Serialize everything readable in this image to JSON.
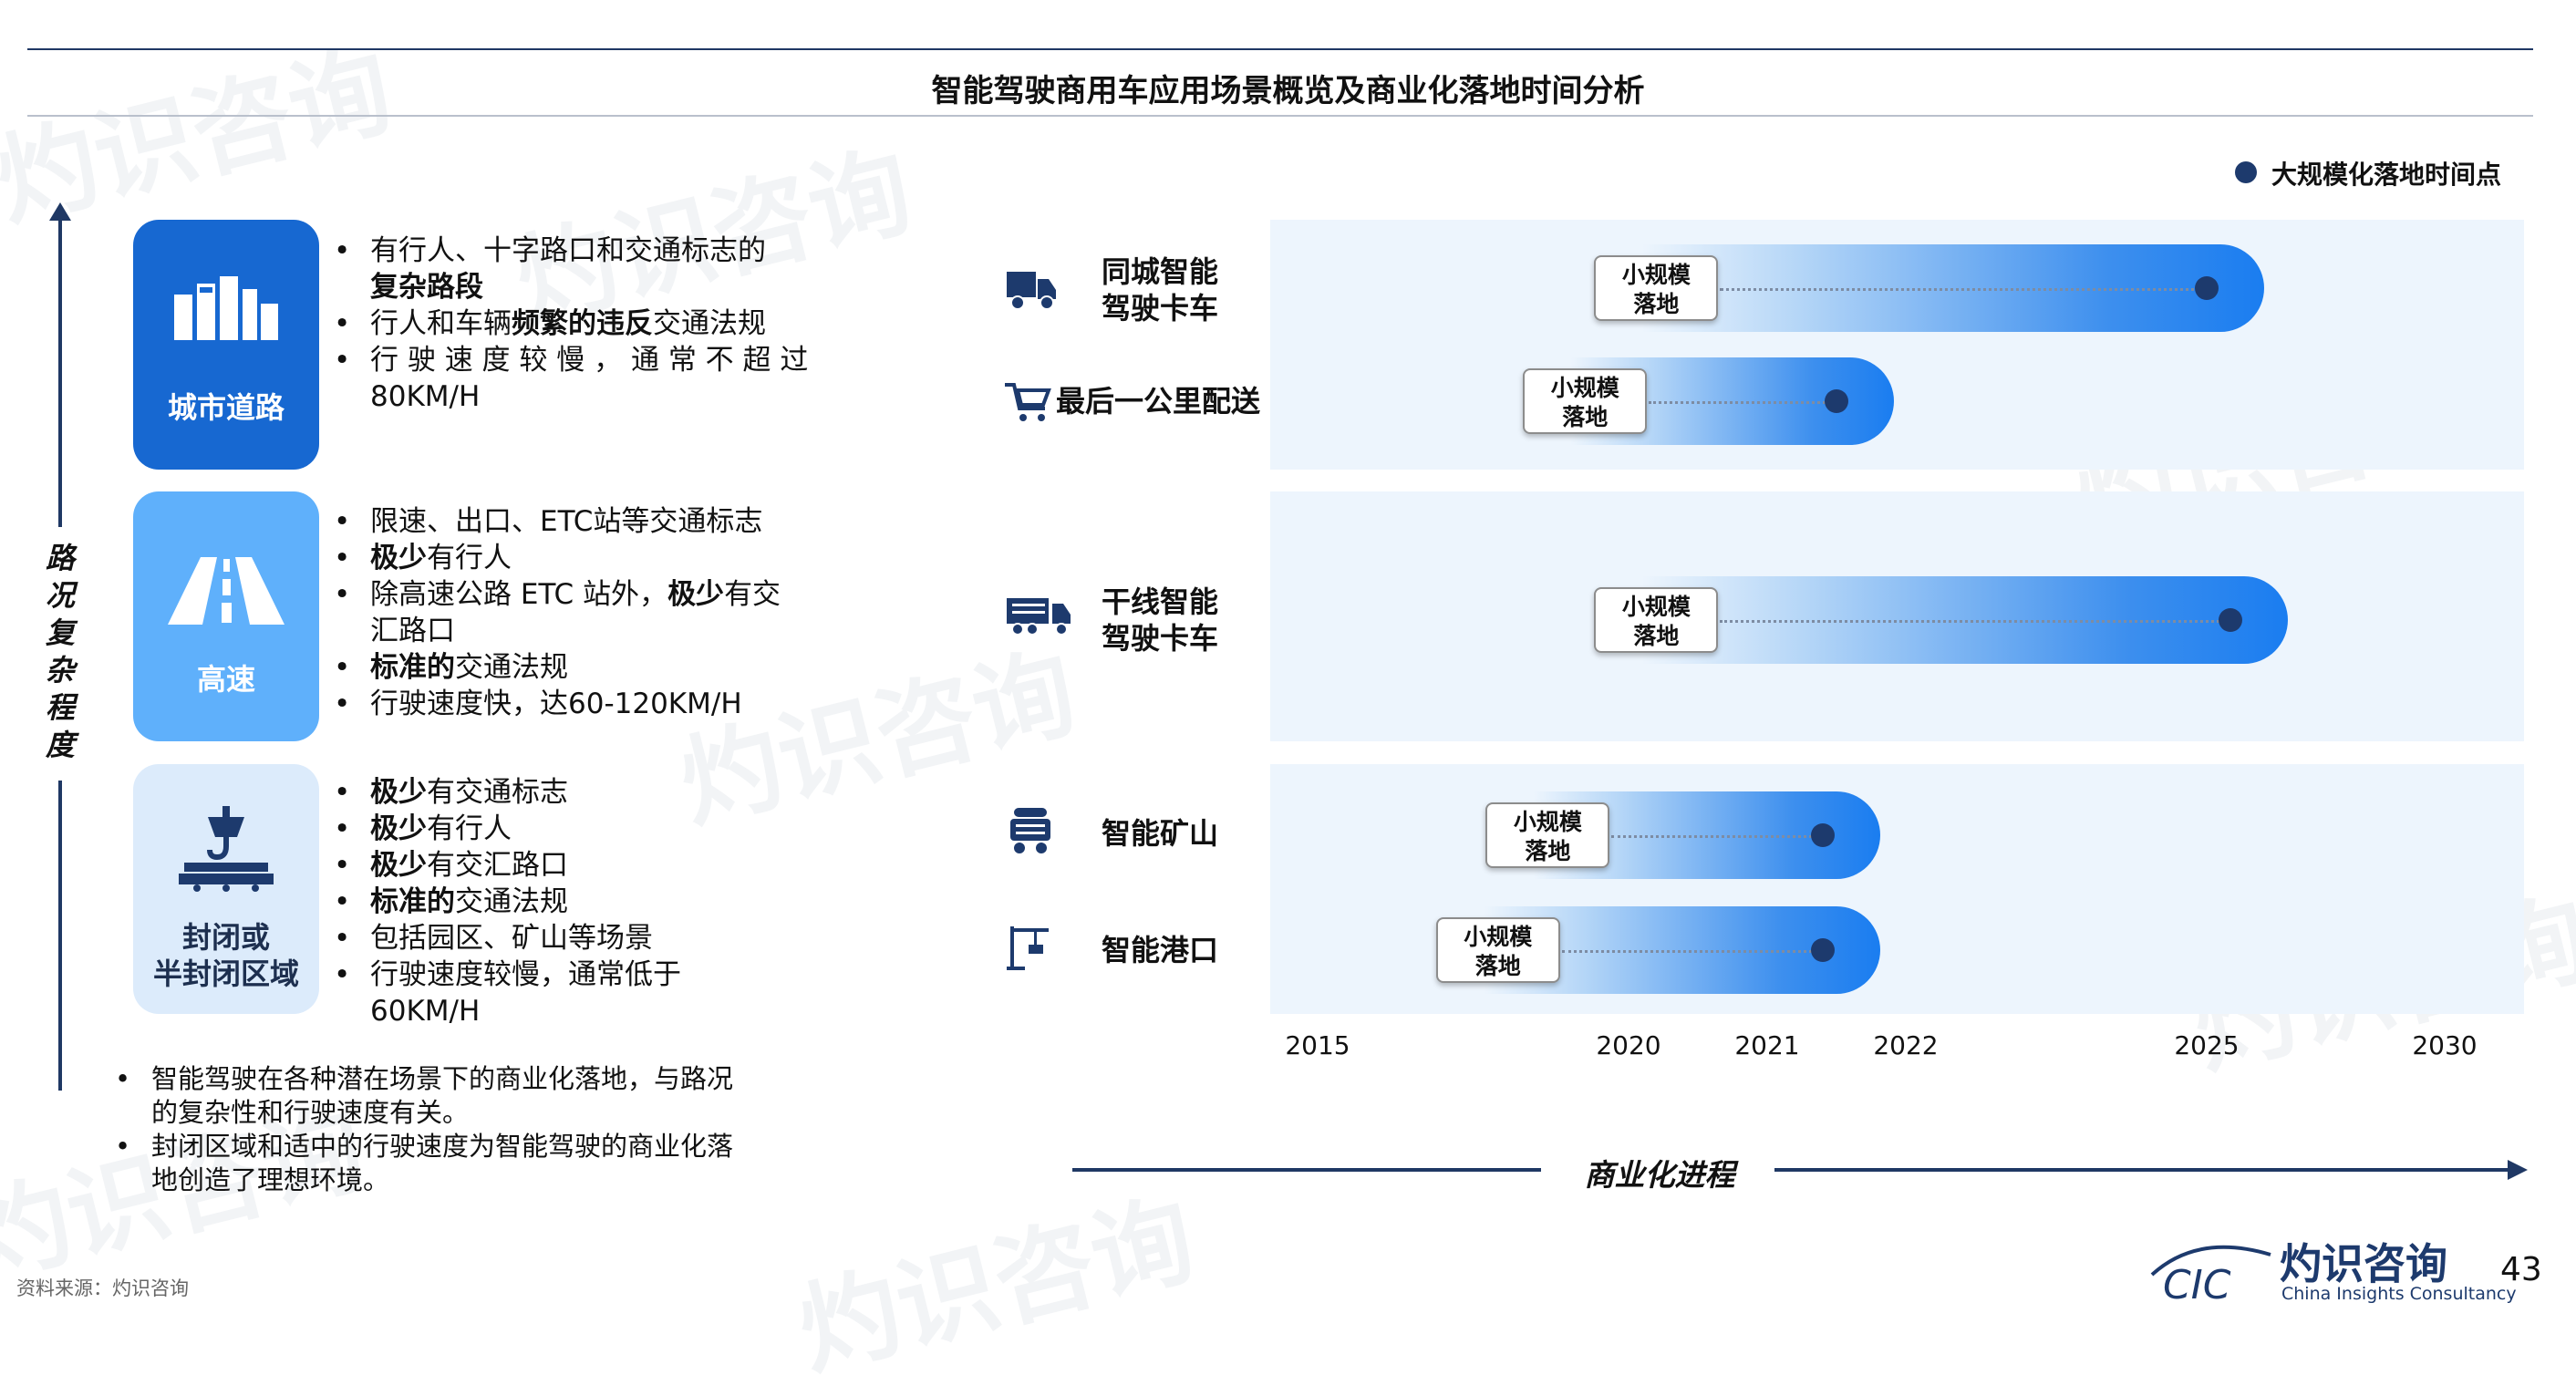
{
  "title": "智能驾驶商用车应用场景概览及商业化落地时间分析",
  "left_axis_label": [
    "路",
    "况",
    "复",
    "杂",
    "程",
    "度"
  ],
  "scenarios": [
    {
      "label_lines": [
        "城市道路"
      ],
      "bullets": [
        {
          "lines": [
            [
              {
                "t": "有行人、十字路口和交通标志的",
                "b": false
              }
            ],
            [
              {
                "t": "复杂路段",
                "b": true
              }
            ]
          ]
        },
        {
          "lines": [
            [
              {
                "t": "行人和车辆",
                "b": false
              },
              {
                "t": "频繁的违反",
                "b": true
              },
              {
                "t": "交通法规",
                "b": false
              }
            ]
          ]
        },
        {
          "lines": [
            [
              {
                "t": "行 驶 速 度 较 慢 ， 通 常 不 超 过",
                "b": false
              }
            ],
            [
              {
                "t": "80KM/H",
                "b": false
              }
            ]
          ]
        }
      ]
    },
    {
      "label_lines": [
        "高速"
      ],
      "bullets": [
        {
          "lines": [
            [
              {
                "t": "限速、出口、ETC站等交通标志",
                "b": false
              }
            ]
          ]
        },
        {
          "lines": [
            [
              {
                "t": "极少",
                "b": true
              },
              {
                "t": "有行人",
                "b": false
              }
            ]
          ]
        },
        {
          "lines": [
            [
              {
                "t": "除高速公路 ETC 站外，",
                "b": false
              },
              {
                "t": "极少",
                "b": true
              },
              {
                "t": "有交",
                "b": false
              }
            ],
            [
              {
                "t": "汇路口",
                "b": false
              }
            ]
          ]
        },
        {
          "lines": [
            [
              {
                "t": "标准的",
                "b": true
              },
              {
                "t": "交通法规",
                "b": false
              }
            ]
          ]
        },
        {
          "lines": [
            [
              {
                "t": "行驶速度快，达60-120KM/H",
                "b": false
              }
            ]
          ]
        }
      ]
    },
    {
      "label_lines": [
        "封闭或",
        "半封闭区域"
      ],
      "bullets": [
        {
          "lines": [
            [
              {
                "t": "极少",
                "b": true
              },
              {
                "t": "有交通标志",
                "b": false
              }
            ]
          ]
        },
        {
          "lines": [
            [
              {
                "t": "极少",
                "b": true
              },
              {
                "t": "有行人",
                "b": false
              }
            ]
          ]
        },
        {
          "lines": [
            [
              {
                "t": "极少",
                "b": true
              },
              {
                "t": "有交汇路口",
                "b": false
              }
            ]
          ]
        },
        {
          "lines": [
            [
              {
                "t": "标准的",
                "b": true
              },
              {
                "t": "交通法规",
                "b": false
              }
            ]
          ]
        },
        {
          "lines": [
            [
              {
                "t": "包括园区、矿山等场景",
                "b": false
              }
            ]
          ]
        },
        {
          "lines": [
            [
              {
                "t": "行驶速度较慢，通常低于",
                "b": false
              }
            ],
            [
              {
                "t": "60KM/H",
                "b": false
              }
            ]
          ]
        }
      ]
    }
  ],
  "notes": [
    [
      "智能驾驶在各种潜在场景下的商业化落地，与路况",
      "的复杂性和行驶速度有关。"
    ],
    [
      "封闭区域和适中的行驶速度为智能驾驶的商业化落",
      "地创造了理想环境。"
    ]
  ],
  "source": "资料来源：灼识咨询",
  "legend": "大规模化落地时间点",
  "small_scale_label": [
    "小规模",
    "落地"
  ],
  "x_axis_title": "商业化进程",
  "page_number": "43",
  "logo": {
    "mark": "CIC",
    "cn": "灼识咨询",
    "en": "China Insights Consultancy"
  },
  "watermark": {
    "cn": "灼识咨询",
    "en": "China Insights Consultancy"
  },
  "chart_data": {
    "type": "timeline",
    "x_ticks": [
      2015,
      2020,
      2021,
      2022,
      2025,
      2030
    ],
    "rows": [
      {
        "label": [
          "同城智能",
          "驾驶卡车"
        ],
        "icon": "delivery-truck-icon",
        "small_scale": 2020.2,
        "large_scale": 2025
      },
      {
        "label": [
          "最后一公里配送"
        ],
        "icon": "cart-icon",
        "small_scale": 2019.3,
        "large_scale": 2021.5
      },
      {
        "label": [
          "干线智能",
          "驾驶卡车"
        ],
        "icon": "truck-icon",
        "small_scale": 2020.2,
        "large_scale": 2025.5
      },
      {
        "label": [
          "智能矿山"
        ],
        "icon": "mine-cart-icon",
        "small_scale": 2018.7,
        "large_scale": 2021.4
      },
      {
        "label": [
          "智能港口"
        ],
        "icon": "port-crane-icon",
        "small_scale": 2017.9,
        "large_scale": 2021.4
      }
    ]
  }
}
